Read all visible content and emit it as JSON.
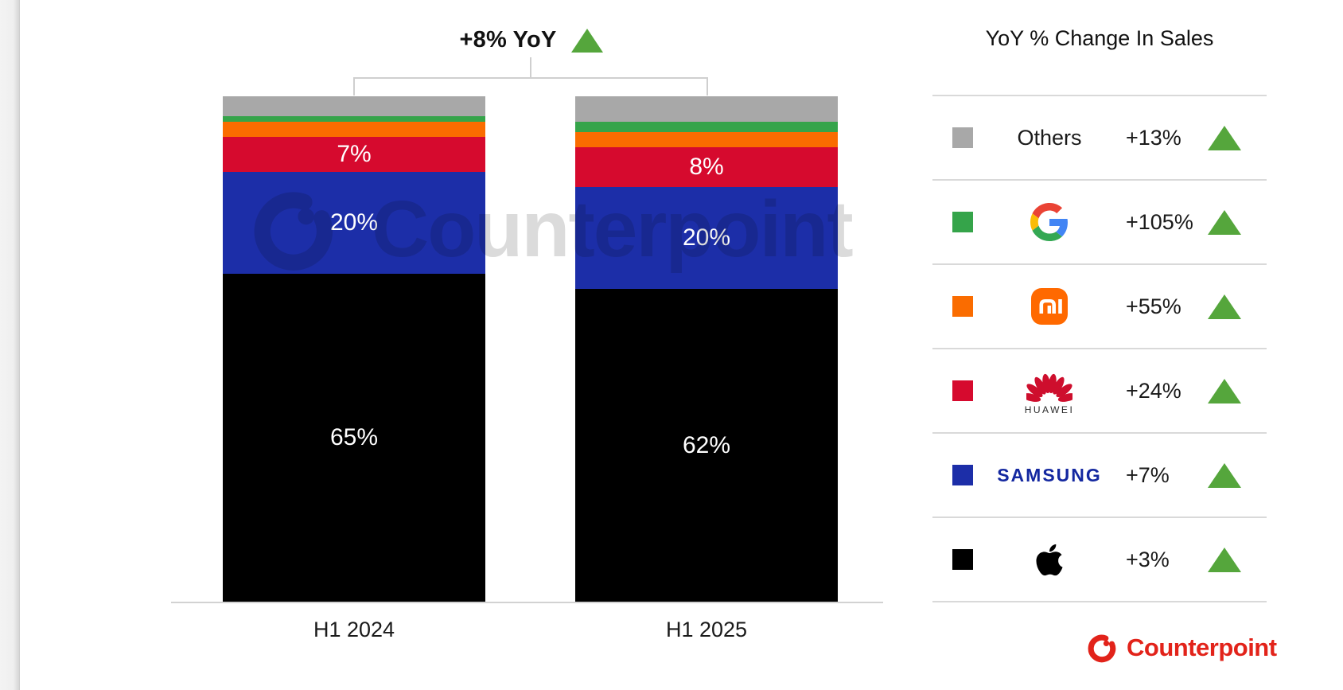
{
  "header": {
    "title": "+8% YoY",
    "direction": "up"
  },
  "watermark": {
    "text": "Counterpoint"
  },
  "footer": {
    "brand": "Counterpoint"
  },
  "colors": {
    "positive_green": "#55a63c",
    "counterpoint_red": "#e2231a",
    "divider_gray": "#d9d9d9",
    "apple_black": "#000000",
    "samsung_blue": "#1c2ea8",
    "huawei_red": "#d60a2e",
    "xiaomi_orange": "#fa6c00",
    "google_green": "#35a44a",
    "others_gray": "#a8a8a8"
  },
  "chart_data": {
    "type": "bar",
    "stacked": true,
    "unit": "percent share of sales",
    "title": "+8% YoY",
    "categories": [
      "H1 2024",
      "H1 2025"
    ],
    "series": [
      {
        "name": "Apple",
        "color": "#000000",
        "values": [
          65,
          62
        ],
        "labels": [
          "65%",
          "62%"
        ]
      },
      {
        "name": "Samsung",
        "color": "#1c2ea8",
        "values": [
          20,
          20
        ],
        "labels": [
          "20%",
          "20%"
        ]
      },
      {
        "name": "Huawei",
        "color": "#d60a2e",
        "values": [
          7,
          8
        ],
        "labels": [
          "7%",
          "8%"
        ]
      },
      {
        "name": "Xiaomi",
        "color": "#fa6c00",
        "values": [
          3,
          3
        ],
        "labels": [
          "",
          ""
        ]
      },
      {
        "name": "Google",
        "color": "#35a44a",
        "values": [
          1,
          2
        ],
        "labels": [
          "",
          ""
        ]
      },
      {
        "name": "Others",
        "color": "#a8a8a8",
        "values": [
          4,
          5
        ],
        "labels": [
          "",
          ""
        ]
      }
    ],
    "ylim": [
      0,
      100
    ],
    "grid": false,
    "legend_position": "right"
  },
  "legend": {
    "title": "YoY % Change In Sales",
    "rows": [
      {
        "brand": "Others",
        "logo": "others-text",
        "swatch": "#a8a8a8",
        "change": "+13%",
        "direction": "up"
      },
      {
        "brand": "Google",
        "logo": "google-g",
        "swatch": "#35a44a",
        "change": "+105%",
        "direction": "up"
      },
      {
        "brand": "Xiaomi",
        "logo": "xiaomi-mi",
        "swatch": "#fa6c00",
        "change": "+55%",
        "direction": "up"
      },
      {
        "brand": "Huawei",
        "logo": "huawei-flower",
        "swatch": "#d60a2e",
        "change": "+24%",
        "direction": "up",
        "caption": "HUAWEI"
      },
      {
        "brand": "Samsung",
        "logo": "samsung-wordmark",
        "swatch": "#1c2ea8",
        "change": "+7%",
        "direction": "up",
        "wordmark": "SAMSUNG"
      },
      {
        "brand": "Apple",
        "logo": "apple-mark",
        "swatch": "#000000",
        "change": "+3%",
        "direction": "up"
      }
    ]
  }
}
